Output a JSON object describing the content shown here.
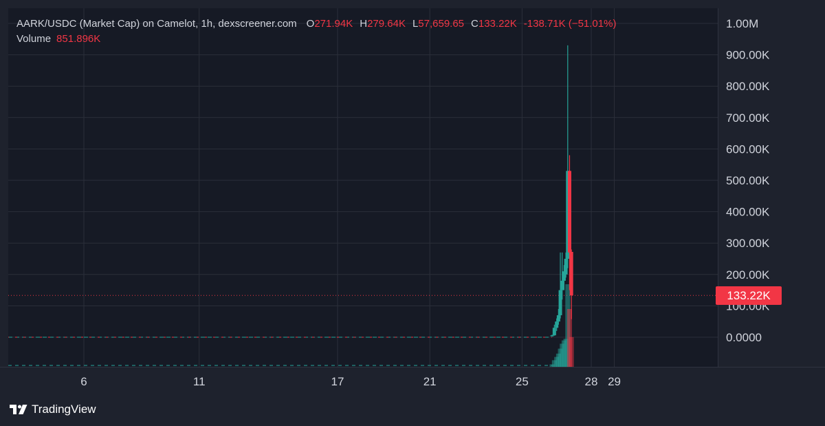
{
  "legend": {
    "title": "AARK/USDC (Market Cap) on Camelot, 1h, dexscreener.com",
    "open_label": "O",
    "open": "271.94K",
    "high_label": "H",
    "high": "279.64K",
    "low_label": "L",
    "low": "57,659.65",
    "close_label": "C",
    "close": "133.22K",
    "change": "-138.71K (−51.01%)",
    "volume_label": "Volume",
    "volume": "851.896K"
  },
  "price_badge": "133.22K",
  "brand": {
    "name": "TradingView"
  },
  "colors": {
    "background": "#1e222d",
    "up": "#26a69a",
    "down": "#f23645",
    "grid": "#2b2f3a",
    "text": "#d1d4dc"
  },
  "chart_data": {
    "type": "candlestick",
    "title": "AARK/USDC (Market Cap) on Camelot, 1h, dexscreener.com",
    "y_ticks": [
      "1.00M",
      "900.00K",
      "800.00K",
      "700.00K",
      "600.00K",
      "500.00K",
      "400.00K",
      "300.00K",
      "200.00K",
      "100.00K",
      "0.0000"
    ],
    "y_tick_values": [
      1000000,
      900000,
      800000,
      700000,
      600000,
      500000,
      400000,
      300000,
      200000,
      100000,
      0
    ],
    "x_ticks": [
      "6",
      "11",
      "17",
      "21",
      "25",
      "28",
      "29"
    ],
    "x_tick_days": [
      6,
      11,
      17,
      21,
      25,
      28,
      29
    ],
    "last_price": 133220,
    "flat_level": 0,
    "grid": true,
    "candles": [
      {
        "day": 26.3,
        "o": 3000,
        "h": 8000,
        "l": 2000,
        "c": 6000,
        "v": 3
      },
      {
        "day": 26.4,
        "o": 6000,
        "h": 40000,
        "l": 5000,
        "c": 30000,
        "v": 8
      },
      {
        "day": 26.5,
        "o": 30000,
        "h": 60000,
        "l": 20000,
        "c": 50000,
        "v": 12
      },
      {
        "day": 26.58,
        "o": 50000,
        "h": 90000,
        "l": 40000,
        "c": 70000,
        "v": 16
      },
      {
        "day": 26.66,
        "o": 70000,
        "h": 270000,
        "l": 60000,
        "c": 150000,
        "v": 22
      },
      {
        "day": 26.74,
        "o": 150000,
        "h": 270000,
        "l": 120000,
        "c": 180000,
        "v": 28
      },
      {
        "day": 26.82,
        "o": 180000,
        "h": 230000,
        "l": 150000,
        "c": 210000,
        "v": 32
      },
      {
        "day": 26.9,
        "o": 200000,
        "h": 270000,
        "l": 190000,
        "c": 250000,
        "v": 34
      },
      {
        "day": 26.98,
        "o": 250000,
        "h": 930000,
        "l": 220000,
        "c": 530000,
        "v": 100
      },
      {
        "day": 27.06,
        "o": 530000,
        "h": 580000,
        "l": 150000,
        "c": 270000,
        "v": 70
      },
      {
        "day": 27.14,
        "o": 271940,
        "h": 279640,
        "l": 57659.65,
        "c": 133220,
        "v": 36
      }
    ]
  }
}
